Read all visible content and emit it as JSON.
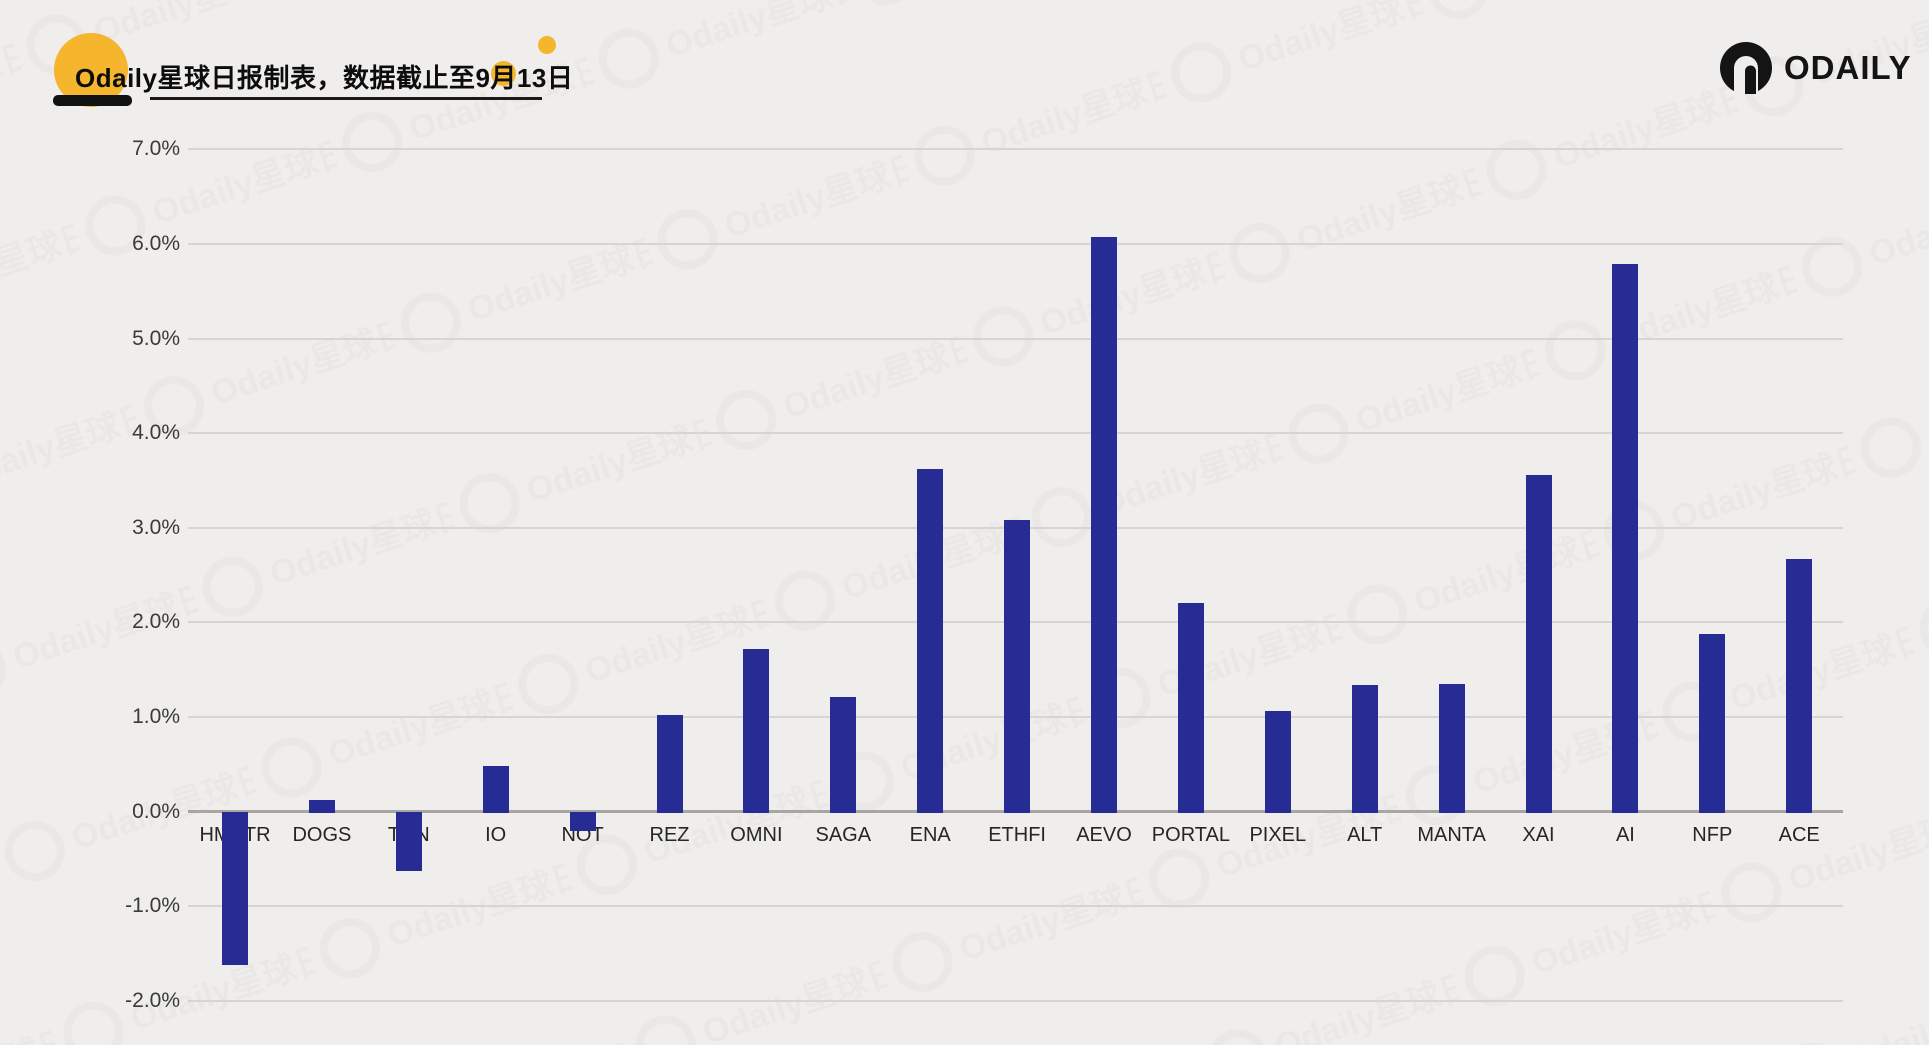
{
  "header": {
    "title": "Odaily星球日报制表，数据截止至9月13日",
    "brand": "ODAILY"
  },
  "chart_data": {
    "type": "bar",
    "title": "Odaily星球日报制表，数据截止至9月13日",
    "categories": [
      "HMSTR",
      "DOGS",
      "TON",
      "IO",
      "NOT",
      "REZ",
      "OMNI",
      "SAGA",
      "ENA",
      "ETHFI",
      "AEVO",
      "PORTAL",
      "PIXEL",
      "ALT",
      "MANTA",
      "XAI",
      "AI",
      "NFP",
      "ACE"
    ],
    "values": [
      -1.62,
      0.12,
      -0.63,
      0.48,
      -0.21,
      1.02,
      1.72,
      1.21,
      3.62,
      3.08,
      6.07,
      2.2,
      1.06,
      1.34,
      1.35,
      3.56,
      5.79,
      1.88,
      2.67
    ],
    "unit": "%",
    "ylabel": "",
    "xlabel": "",
    "ylim": [
      -2.0,
      7.0
    ],
    "yticks": [
      7,
      6,
      5,
      4,
      3,
      2,
      1,
      0,
      -1,
      -2
    ],
    "ytick_labels": [
      "7.0%",
      "6.0%",
      "5.0%",
      "4.0%",
      "3.0%",
      "2.0%",
      "1.0%",
      "0.0%",
      "-1.0%",
      "-2.0%"
    ],
    "grid": true,
    "legend_position": "none",
    "bar_color": "#272c94"
  },
  "colors": {
    "background": "#efeeec",
    "bar": "#272c94",
    "gridline": "#d7d5d3",
    "zero_line": "#a8a5a2",
    "accent_yellow": "#f5b52d",
    "title_text": "#0d0d0d",
    "tick_text": "#3a3a3a"
  }
}
